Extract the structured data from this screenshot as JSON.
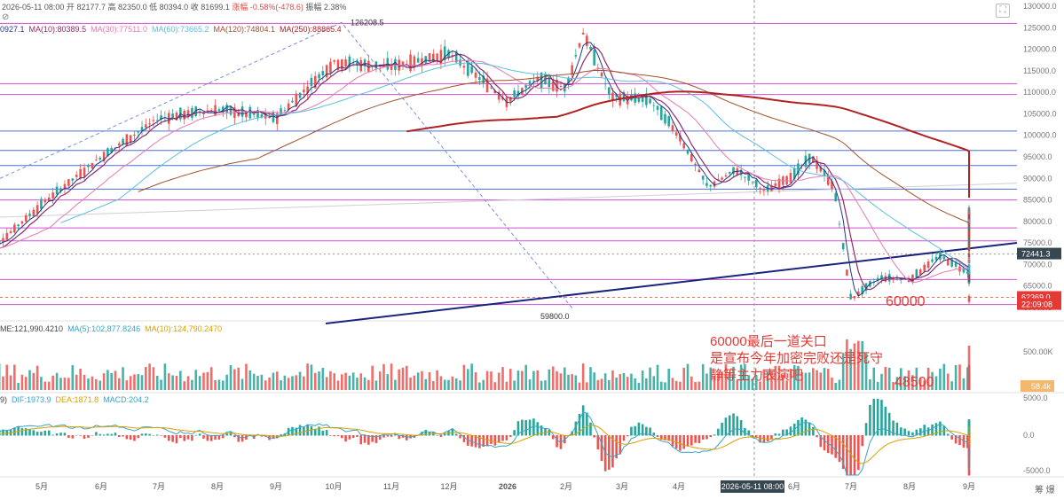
{
  "header": {
    "date": "2026-05-11 08:00",
    "open_label": "开",
    "open": "82177.7",
    "high_label": "高",
    "high": "82350.0",
    "low_label": "低",
    "low": "80394.0",
    "close_label": "收",
    "close": "81699.1",
    "change_label": "涨幅",
    "change": "-0.58%(-478.6)",
    "amplitude_label": "振幅",
    "amplitude": "2.38%"
  },
  "ma_legend": [
    {
      "text": "0927.1",
      "color": "#1e3a8a"
    },
    {
      "text": "MA(10):80389.5",
      "color": "#8e2b6a"
    },
    {
      "text": "MA(30):77511.0",
      "color": "#e879b4"
    },
    {
      "text": "MA(60):73665.2",
      "color": "#5bc0de"
    },
    {
      "text": "MA(120):74804.1",
      "color": "#a0522d"
    },
    {
      "text": "MA(250):88865.4",
      "color": "#b22222"
    }
  ],
  "vol_legend": [
    {
      "text": "ME:121,990.4210",
      "color": "#444444"
    },
    {
      "text": "MA(5):102,877.8246",
      "color": "#3aa3c8"
    },
    {
      "text": "MA(10):124,790.2470",
      "color": "#d9a100"
    }
  ],
  "macd_legend": [
    {
      "text": "9)",
      "color": "#444444"
    },
    {
      "text": "DIF:1973.9",
      "color": "#3aa3c8"
    },
    {
      "text": "DEA:1871.8",
      "color": "#d9a100"
    },
    {
      "text": "MACD:204.2",
      "color": "#3aa3c8"
    }
  ],
  "annotations": {
    "line1": "60000最后一道关口",
    "line2": "是宣布今年加密完败还是死守",
    "line3": "静等主力表演吧",
    "level_60000": "60000",
    "level_48500": "48500"
  },
  "corner_text": "筹 爆",
  "colors": {
    "up": "#26a69a",
    "down": "#ef5350",
    "hline_magenta": "#d050d0",
    "hline_blue": "#4a6fd8",
    "trendline": "#1a237e"
  },
  "chart_data": {
    "type": "candlestick",
    "x_ticks": [
      "5月",
      "6月",
      "7月",
      "8月",
      "9月",
      "10月",
      "11月",
      "12月",
      "2026",
      "2月",
      "3月",
      "4月",
      "6月",
      "7月",
      "8月",
      "9月"
    ],
    "cursor_x_label": "2026-05-11 08:00",
    "price_axis": {
      "ticks": [
        130000,
        125000,
        120000,
        115000,
        110000,
        105000,
        100000,
        95000,
        90000,
        85000,
        80000,
        75000,
        70000,
        65000,
        60000
      ],
      "tick_labels": [
        "130000.0",
        "125000.0",
        "120000.0",
        "115000.0",
        "110000.0",
        "105000.0",
        "100000.0",
        "95000.0",
        "90000.0",
        "85000.0",
        "80000.0",
        "75000.0",
        "70000.0",
        "65000.0",
        "60000.0"
      ],
      "range": [
        57500,
        131500
      ]
    },
    "price_badges": [
      {
        "text": "72441.3",
        "value": 72441.3,
        "color": "#37474f"
      },
      {
        "text": "62369.0",
        "value": 62369.0,
        "color": "#e53935"
      },
      {
        "text": "22:09:08",
        "value": 60700,
        "color": "#e53935"
      }
    ],
    "marked_prices": [
      {
        "text": "126208.5",
        "value": 126208.5,
        "month": 10.3
      },
      {
        "text": "59800.0",
        "value": 59800.0,
        "month": 15.0
      }
    ],
    "horizontal_levels": [
      {
        "value": 126000,
        "color": "magenta"
      },
      {
        "value": 112000,
        "color": "magenta"
      },
      {
        "value": 109500,
        "color": "magenta"
      },
      {
        "value": 101000,
        "color": "blue"
      },
      {
        "value": 96500,
        "color": "blue"
      },
      {
        "value": 93000,
        "color": "blue"
      },
      {
        "value": 87500,
        "color": "blue"
      },
      {
        "value": 85000,
        "color": "magenta"
      },
      {
        "value": 78500,
        "color": "magenta"
      },
      {
        "value": 75500,
        "color": "magenta"
      },
      {
        "value": 66500,
        "color": "magenta"
      },
      {
        "value": 62369,
        "color": "dashed-red"
      },
      {
        "value": 60700,
        "color": "magenta"
      }
    ],
    "close_series": {
      "x_unit": "month",
      "points": [
        [
          0,
          72000
        ],
        [
          1,
          84000
        ],
        [
          2,
          95000
        ],
        [
          3,
          104000
        ],
        [
          4,
          106000
        ],
        [
          5,
          104000
        ],
        [
          6,
          117000
        ],
        [
          7,
          116000
        ],
        [
          8,
          119000
        ],
        [
          9,
          108000
        ],
        [
          9.5,
          113000
        ],
        [
          10,
          111000
        ],
        [
          10.3,
          124000
        ],
        [
          10.8,
          109000
        ],
        [
          11.5,
          108000
        ],
        [
          12,
          100000
        ],
        [
          12.5,
          88000
        ],
        [
          13,
          92000
        ],
        [
          13.5,
          87000
        ],
        [
          14,
          91000
        ],
        [
          14.3,
          95000
        ],
        [
          14.7,
          88000
        ],
        [
          15,
          62000
        ],
        [
          15.5,
          67000
        ],
        [
          16,
          66500
        ],
        [
          16.5,
          72000
        ],
        [
          17,
          68000
        ],
        [
          17.5,
          66000
        ],
        [
          18,
          75000
        ],
        [
          18.5,
          80000
        ],
        [
          19,
          82000
        ],
        [
          19.3,
          81000
        ],
        [
          19.5,
          78000
        ],
        [
          19.75,
          62369
        ]
      ]
    },
    "volume_axis": {
      "ticks": [
        "500.00K",
        "0.00"
      ],
      "badge": "58.4k"
    },
    "macd_axis": {
      "ticks": [
        "5000.0",
        "0.0",
        "-5000.0"
      ]
    }
  }
}
